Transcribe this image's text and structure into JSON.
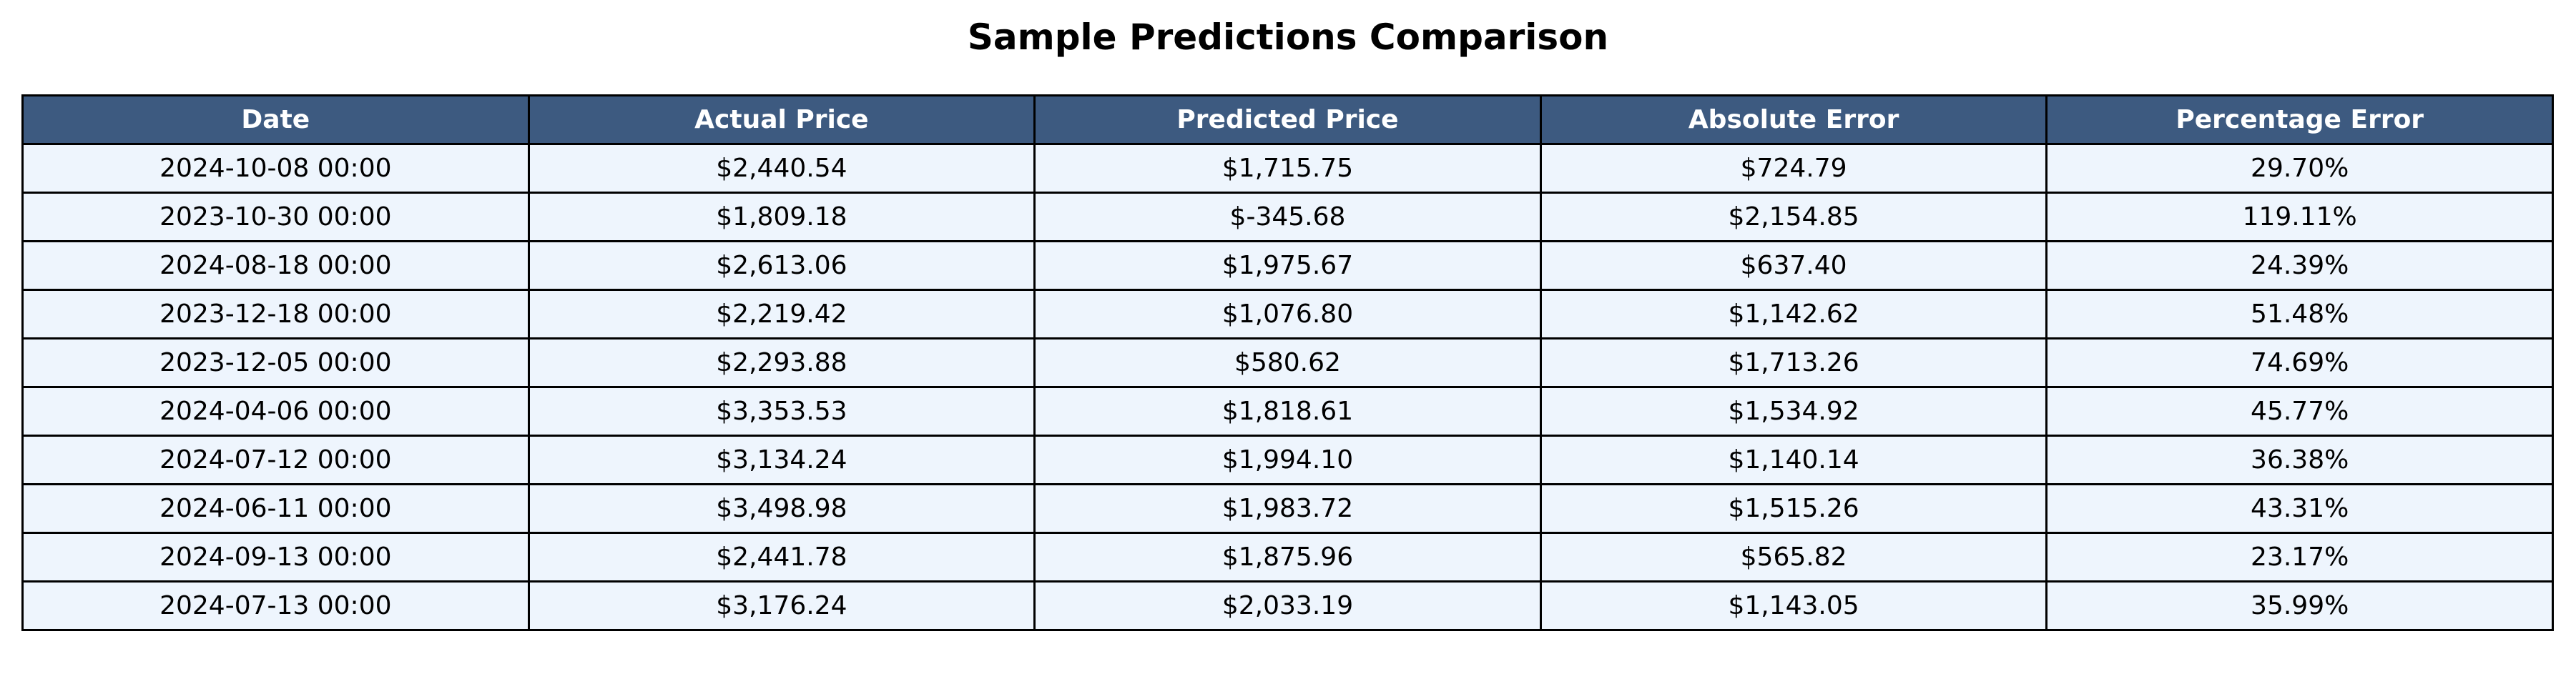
{
  "chart_data": {
    "type": "table",
    "title": "Sample Predictions Comparison",
    "columns": [
      "Date",
      "Actual Price",
      "Predicted Price",
      "Absolute Error",
      "Percentage Error"
    ],
    "rows": [
      [
        "2024-10-08 00:00",
        "$2,440.54",
        "$1,715.75",
        "$724.79",
        "29.70%"
      ],
      [
        "2023-10-30 00:00",
        "$1,809.18",
        "$-345.68",
        "$2,154.85",
        "119.11%"
      ],
      [
        "2024-08-18 00:00",
        "$2,613.06",
        "$1,975.67",
        "$637.40",
        "24.39%"
      ],
      [
        "2023-12-18 00:00",
        "$2,219.42",
        "$1,076.80",
        "$1,142.62",
        "51.48%"
      ],
      [
        "2023-12-05 00:00",
        "$2,293.88",
        "$580.62",
        "$1,713.26",
        "74.69%"
      ],
      [
        "2024-04-06 00:00",
        "$3,353.53",
        "$1,818.61",
        "$1,534.92",
        "45.77%"
      ],
      [
        "2024-07-12 00:00",
        "$3,134.24",
        "$1,994.10",
        "$1,140.14",
        "36.38%"
      ],
      [
        "2024-06-11 00:00",
        "$3,498.98",
        "$1,983.72",
        "$1,515.26",
        "43.31%"
      ],
      [
        "2024-09-13 00:00",
        "$2,441.78",
        "$1,875.96",
        "$565.82",
        "23.17%"
      ],
      [
        "2024-07-13 00:00",
        "$3,176.24",
        "$2,033.19",
        "$1,143.05",
        "35.99%"
      ]
    ],
    "header_color": "#3d5a80",
    "cell_color": "#eef5fd"
  }
}
